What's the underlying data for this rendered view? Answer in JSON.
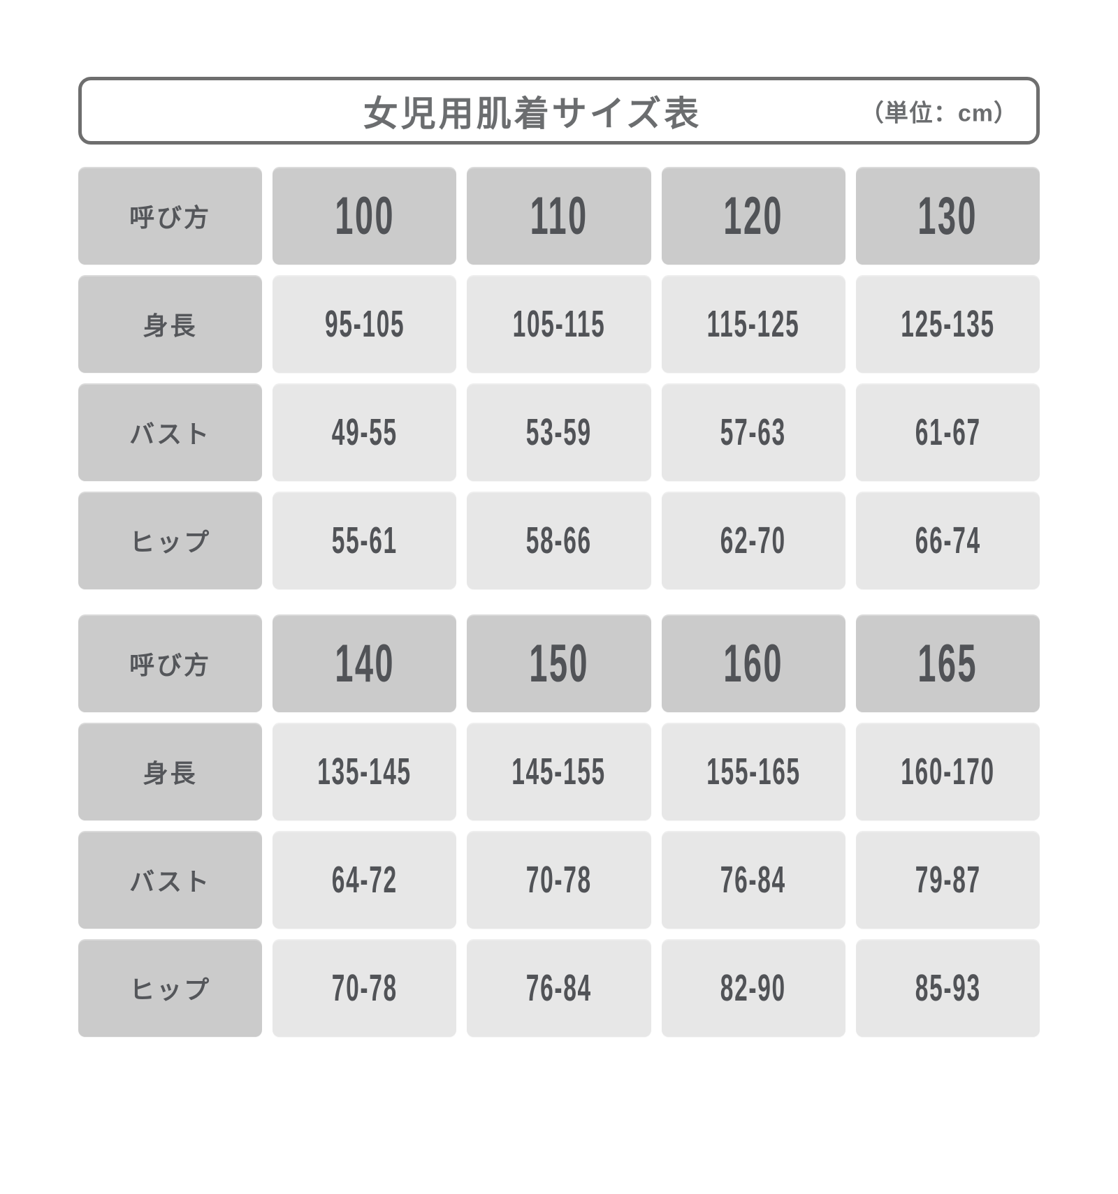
{
  "header": {
    "title": "女児用肌着サイズ表",
    "unit_label": "（単位：cm）"
  },
  "colors": {
    "header_cell_bg": "#cbcbcb",
    "data_cell_bg": "#e7e7e7",
    "cell_text": "#54565a",
    "title_text": "#6b6d6f",
    "title_border": "#6e6e6e",
    "page_bg": "#ffffff"
  },
  "chart_data": {
    "type": "table",
    "title": "女児用肌着サイズ表",
    "unit": "cm",
    "row_labels": [
      "呼び方",
      "身長",
      "バスト",
      "ヒップ"
    ],
    "tables": [
      {
        "rows": [
          {
            "label": "呼び方",
            "cells": [
              "100",
              "110",
              "120",
              "130"
            ]
          },
          {
            "label": "身長",
            "cells": [
              "95-105",
              "105-115",
              "115-125",
              "125-135"
            ]
          },
          {
            "label": "バスト",
            "cells": [
              "49-55",
              "53-59",
              "57-63",
              "61-67"
            ]
          },
          {
            "label": "ヒップ",
            "cells": [
              "55-61",
              "58-66",
              "62-70",
              "66-74"
            ]
          }
        ]
      },
      {
        "rows": [
          {
            "label": "呼び方",
            "cells": [
              "140",
              "150",
              "160",
              "165"
            ]
          },
          {
            "label": "身長",
            "cells": [
              "135-145",
              "145-155",
              "155-165",
              "160-170"
            ]
          },
          {
            "label": "バスト",
            "cells": [
              "64-72",
              "70-78",
              "76-84",
              "79-87"
            ]
          },
          {
            "label": "ヒップ",
            "cells": [
              "70-78",
              "76-84",
              "82-90",
              "85-93"
            ]
          }
        ]
      }
    ]
  }
}
